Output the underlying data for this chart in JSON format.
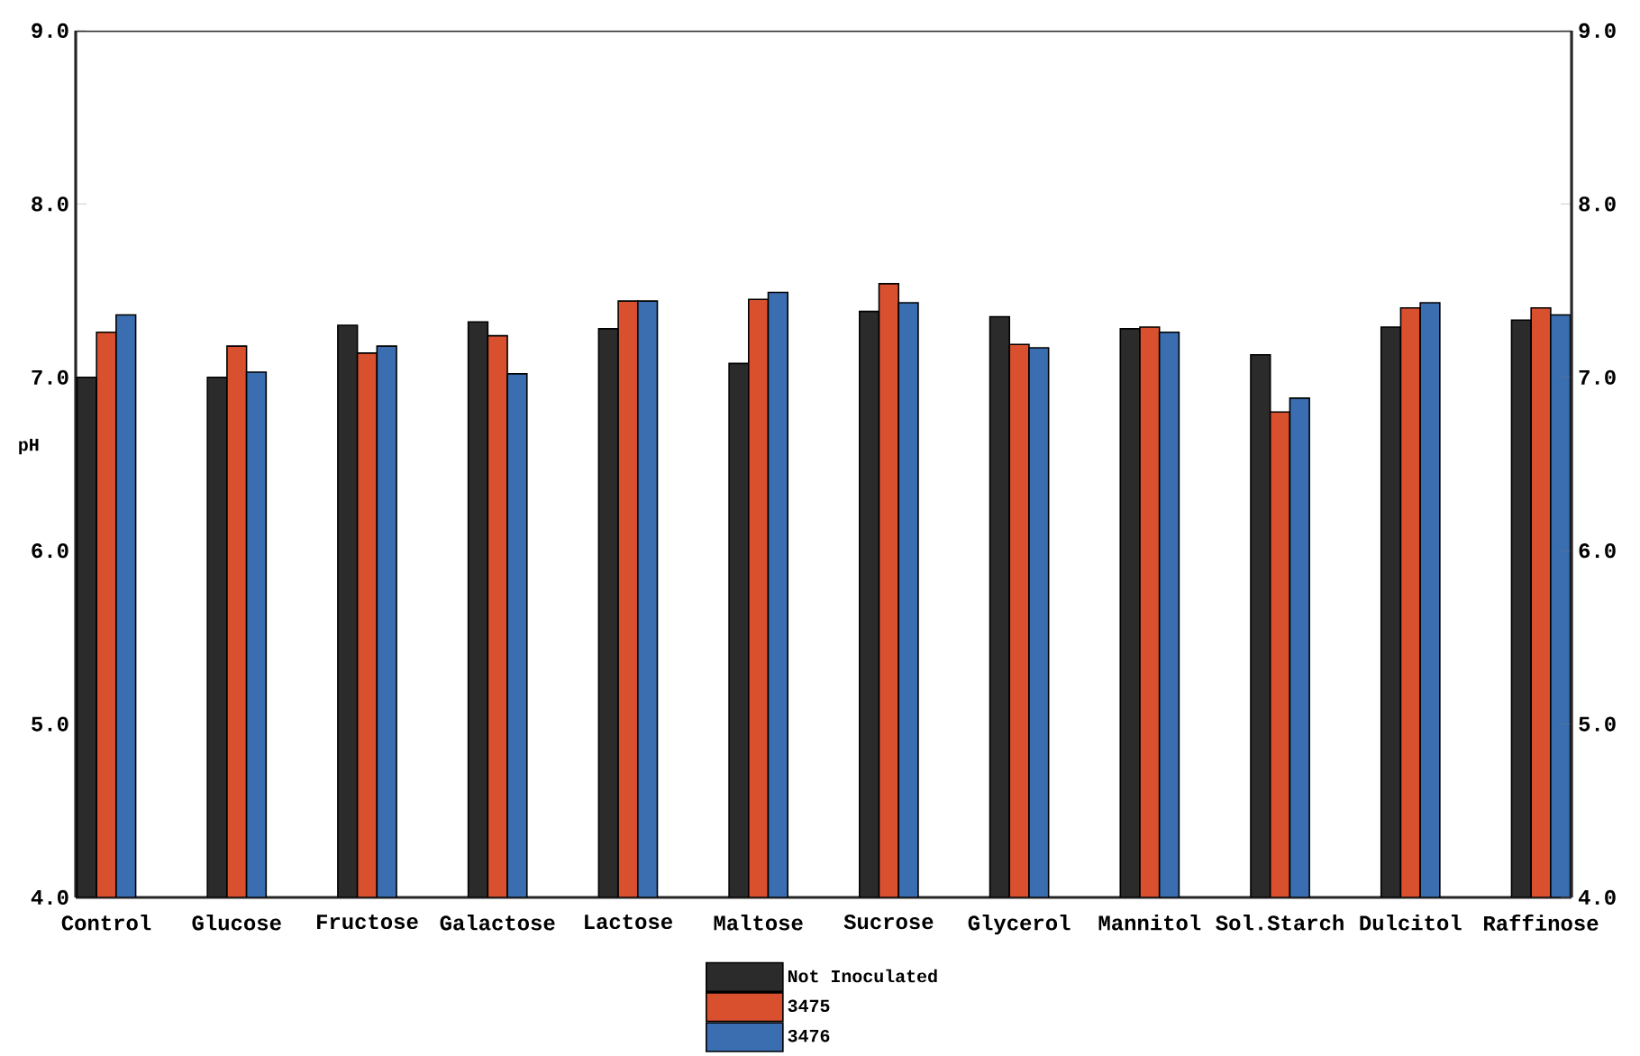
{
  "chart_data": {
    "type": "bar",
    "ylabel": "pH",
    "categories": [
      "Control",
      "Glucose",
      "Fructose",
      "Galactose",
      "Lactose",
      "Maltose",
      "Sucrose",
      "Glycerol",
      "Mannitol",
      "Sol.Starch",
      "Dulcitol",
      "Raffinose"
    ],
    "series": [
      {
        "name": "Not Inoculated",
        "color": "#2b2b2b",
        "values": [
          7.0,
          7.0,
          7.3,
          7.32,
          7.28,
          7.08,
          7.38,
          7.35,
          7.28,
          7.13,
          7.29,
          7.33
        ]
      },
      {
        "name": "3475",
        "color": "#d9502f",
        "values": [
          7.26,
          7.18,
          7.14,
          7.24,
          7.44,
          7.45,
          7.54,
          7.19,
          7.29,
          6.8,
          7.4,
          7.4
        ]
      },
      {
        "name": "3476",
        "color": "#3a6eb0",
        "values": [
          7.36,
          7.03,
          7.18,
          7.02,
          7.44,
          7.49,
          7.43,
          7.17,
          7.26,
          6.88,
          7.43,
          7.36
        ]
      }
    ],
    "ylim": [
      4,
      9
    ],
    "yticks": [
      {
        "value": 4,
        "label": "4.0"
      },
      {
        "value": 5,
        "label": "5.0"
      },
      {
        "value": 6,
        "label": "6.0"
      },
      {
        "value": 7,
        "label": "7.0"
      },
      {
        "value": 8,
        "label": "8.0"
      },
      {
        "value": 9,
        "label": "9.0"
      }
    ],
    "y2lim": [
      4,
      9
    ],
    "y2ticks": [
      {
        "value": 4,
        "label": "4.0"
      },
      {
        "value": 5,
        "label": "5.0"
      },
      {
        "value": 6,
        "label": "6.0"
      },
      {
        "value": 7,
        "label": "7.0"
      },
      {
        "value": 8,
        "label": "8.0"
      },
      {
        "value": 9,
        "label": "9.0"
      }
    ],
    "legend": "bottom"
  }
}
